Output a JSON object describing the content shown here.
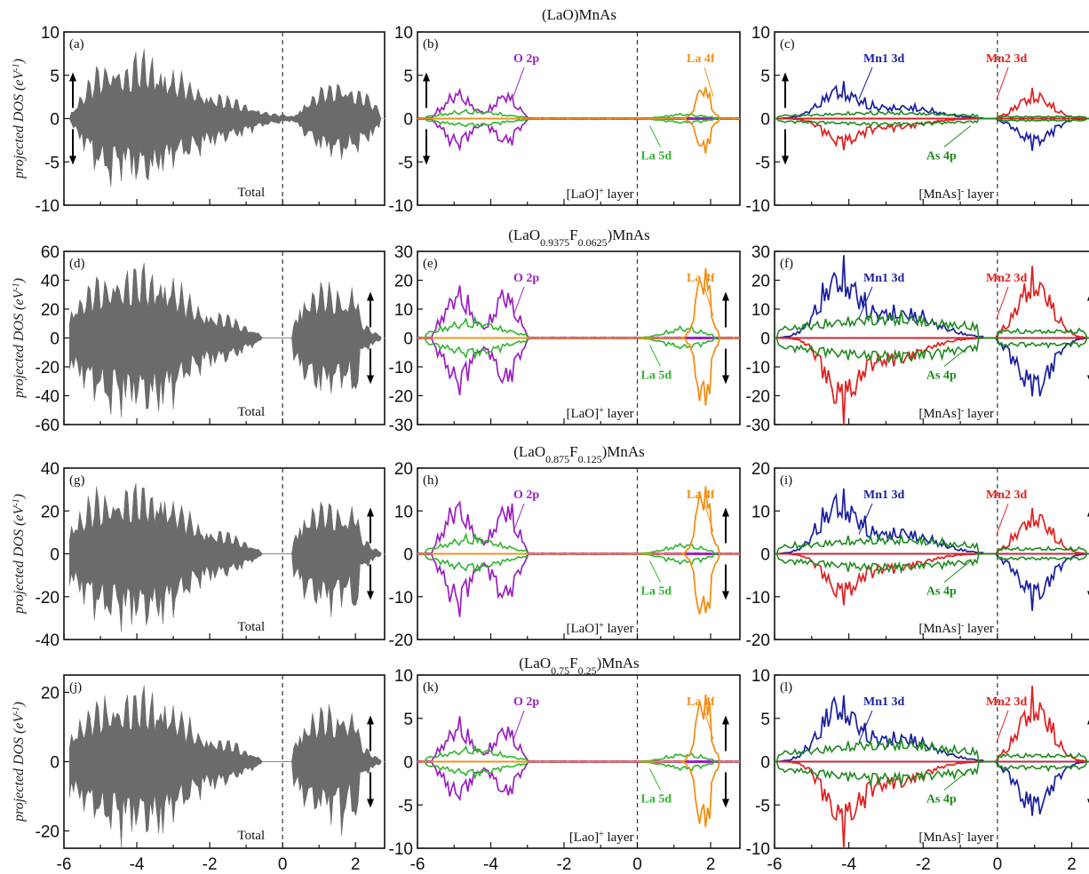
{
  "colors": {
    "total": "#6b6b6b",
    "O_2p": "#9b1fc0",
    "La_5d": "#2fb52f",
    "La_4f": "#f0901a",
    "Mn1_3d": "#1a1fa0",
    "Mn2_3d": "#e02020",
    "As_4p": "#1f8a1f"
  },
  "ylabel_prefix": "projected DOS (eV",
  "ylabel_sup": "-1",
  "ylabel_suffix": ")",
  "x_ticks": [
    "-6",
    "-4",
    "-2",
    "0",
    "2"
  ],
  "chart_data": [
    {
      "type": "area",
      "composition": "(LaO)MnAs",
      "title_parts": [
        "(LaO)MnAs"
      ],
      "ylim": [
        -10,
        10
      ],
      "xlim": [
        -6,
        2.8
      ],
      "y_ticks": [
        "10",
        "5",
        "0",
        "-5",
        "-10"
      ],
      "panels": [
        {
          "label": "(a)",
          "text": "Total",
          "series": [
            {
              "name": "Total",
              "envelope": [
                [
                  -5.8,
                  1.1
                ],
                [
                  -5.4,
                  4.4
                ],
                [
                  -5.0,
                  7.6
                ],
                [
                  -4.7,
                  8.8
                ],
                [
                  -4.3,
                  7.6
                ],
                [
                  -3.95,
                  8.6
                ],
                [
                  -3.6,
                  8.9
                ],
                [
                  -3.2,
                  7.1
                ],
                [
                  -2.8,
                  5.9
                ],
                [
                  -2.4,
                  4.9
                ],
                [
                  -2.0,
                  3.9
                ],
                [
                  -1.6,
                  3.1
                ],
                [
                  -1.2,
                  2.5
                ],
                [
                  -0.8,
                  1.6
                ],
                [
                  -0.35,
                  0.8
                ],
                [
                  0.3,
                  0.4
                ],
                [
                  0.7,
                  2.9
                ],
                [
                  1.1,
                  4.6
                ],
                [
                  1.5,
                  5.6
                ],
                [
                  1.9,
                  4.6
                ],
                [
                  2.3,
                  3.5
                ],
                [
                  2.7,
                  1.1
                ]
              ]
            }
          ]
        },
        {
          "label": "(b)",
          "text_main": "[LaO]",
          "text_sup": "+",
          "text_tail": " layer",
          "series": [
            {
              "name": "O 2p",
              "max": 4.5
            },
            {
              "name": "La 5d",
              "max": 1.2
            },
            {
              "name": "La 4f",
              "max": 4.4
            }
          ]
        },
        {
          "label": "(c)",
          "text_main": "[MnAs]",
          "text_sup": "-",
          "text_tail": " layer",
          "series": [
            {
              "name": "Mn1 3d",
              "max": 4.4
            },
            {
              "name": "Mn2 3d",
              "max": 3.8
            },
            {
              "name": "As 4p",
              "max": 1.0
            }
          ]
        }
      ]
    },
    {
      "type": "area",
      "composition": "(LaO0.9375F0.0625)MnAs",
      "title_parts": [
        "(LaO",
        "0.9375",
        "F",
        "0.0625",
        ")MnAs"
      ],
      "ylim_total": [
        -60,
        60
      ],
      "ylim": [
        -30,
        30
      ],
      "xlim": [
        -6,
        2.8
      ],
      "y_ticks_total": [
        "60",
        "40",
        "20",
        "0",
        "-20",
        "-40",
        "-60"
      ],
      "y_ticks": [
        "30",
        "20",
        "10",
        "0",
        "-10",
        "-20",
        "-30"
      ],
      "panels": [
        {
          "label": "(d)",
          "text": "Total",
          "series": [
            {
              "name": "Total",
              "max": 58
            }
          ]
        },
        {
          "label": "(e)",
          "text_main": "[LaO]",
          "text_sup": "+",
          "text_tail": " layer",
          "series": [
            {
              "name": "O 2p",
              "max": 24
            },
            {
              "name": "La 5d",
              "max": 8
            },
            {
              "name": "La 4f",
              "max": 30
            }
          ]
        },
        {
          "label": "(f)",
          "text_main": "[MnAs]",
          "text_sup": "-",
          "text_tail": " layer",
          "series": [
            {
              "name": "Mn1 3d",
              "max": 29
            },
            {
              "name": "Mn2 3d",
              "max": 29
            },
            {
              "name": "As 4p",
              "max": 10
            }
          ]
        }
      ]
    },
    {
      "type": "area",
      "composition": "(LaO0.875F0.125)MnAs",
      "title_parts": [
        "(LaO",
        "0.875",
        "F",
        "0.125",
        ")MnAs"
      ],
      "ylim_total": [
        -40,
        40
      ],
      "ylim": [
        -20,
        20
      ],
      "xlim": [
        -6,
        2.8
      ],
      "y_ticks_total": [
        "40",
        "20",
        "0",
        "-20",
        "-40"
      ],
      "y_ticks": [
        "20",
        "10",
        "0",
        "-10",
        "-20"
      ],
      "panels": [
        {
          "label": "(g)",
          "text": "Total",
          "series": [
            {
              "name": "Total",
              "max": 38
            }
          ]
        },
        {
          "label": "(h)",
          "text_main": "[LaO]",
          "text_sup": "+",
          "text_tail": " layer",
          "series": [
            {
              "name": "O 2p",
              "max": 17
            },
            {
              "name": "La 5d",
              "max": 5
            },
            {
              "name": "La 4f",
              "max": 20
            }
          ]
        },
        {
          "label": "(i)",
          "text_main": "[MnAs]",
          "text_sup": "-",
          "text_tail": " layer",
          "series": [
            {
              "name": "Mn1 3d",
              "max": 16
            },
            {
              "name": "Mn2 3d",
              "max": 13
            },
            {
              "name": "As 4p",
              "max": 5
            }
          ]
        }
      ]
    },
    {
      "type": "area",
      "composition": "(LaO0.75F0.25)MnAs",
      "title_parts": [
        "(LaO",
        "0.75",
        "F",
        "0.25",
        ")MnAs"
      ],
      "ylim_total": [
        -25,
        25
      ],
      "ylim": [
        -10,
        10
      ],
      "xlim": [
        -6,
        2.8
      ],
      "y_ticks_total": [
        "20",
        "0",
        "-20"
      ],
      "y_ticks": [
        "10",
        "5",
        "0",
        "-5",
        "-10"
      ],
      "panels": [
        {
          "label": "(j)",
          "text": "Total",
          "series": [
            {
              "name": "Total",
              "max": 24
            }
          ]
        },
        {
          "label": "(k)",
          "text_main": "[Lao]",
          "text_sup": "+",
          "text_tail": " layer",
          "series": [
            {
              "name": "O 2p",
              "max": 6
            },
            {
              "name": "La 5d",
              "max": 2
            },
            {
              "name": "La 4f",
              "max": 10
            }
          ]
        },
        {
          "label": "(l)",
          "text_main": "[MnAs]",
          "text_sup": "-",
          "text_tail": " layer",
          "series": [
            {
              "name": "Mn1 3d",
              "max": 9
            },
            {
              "name": "Mn2 3d",
              "max": 9.5
            },
            {
              "name": "As 4p",
              "max": 3
            }
          ]
        }
      ]
    }
  ],
  "annotations": {
    "O_2p": "O 2p",
    "La_4f": "La 4f",
    "La_5d": "La 5d",
    "Mn1_3d": "Mn1 3d",
    "Mn2_3d": "Mn2 3d",
    "As_4p": "As 4p"
  }
}
